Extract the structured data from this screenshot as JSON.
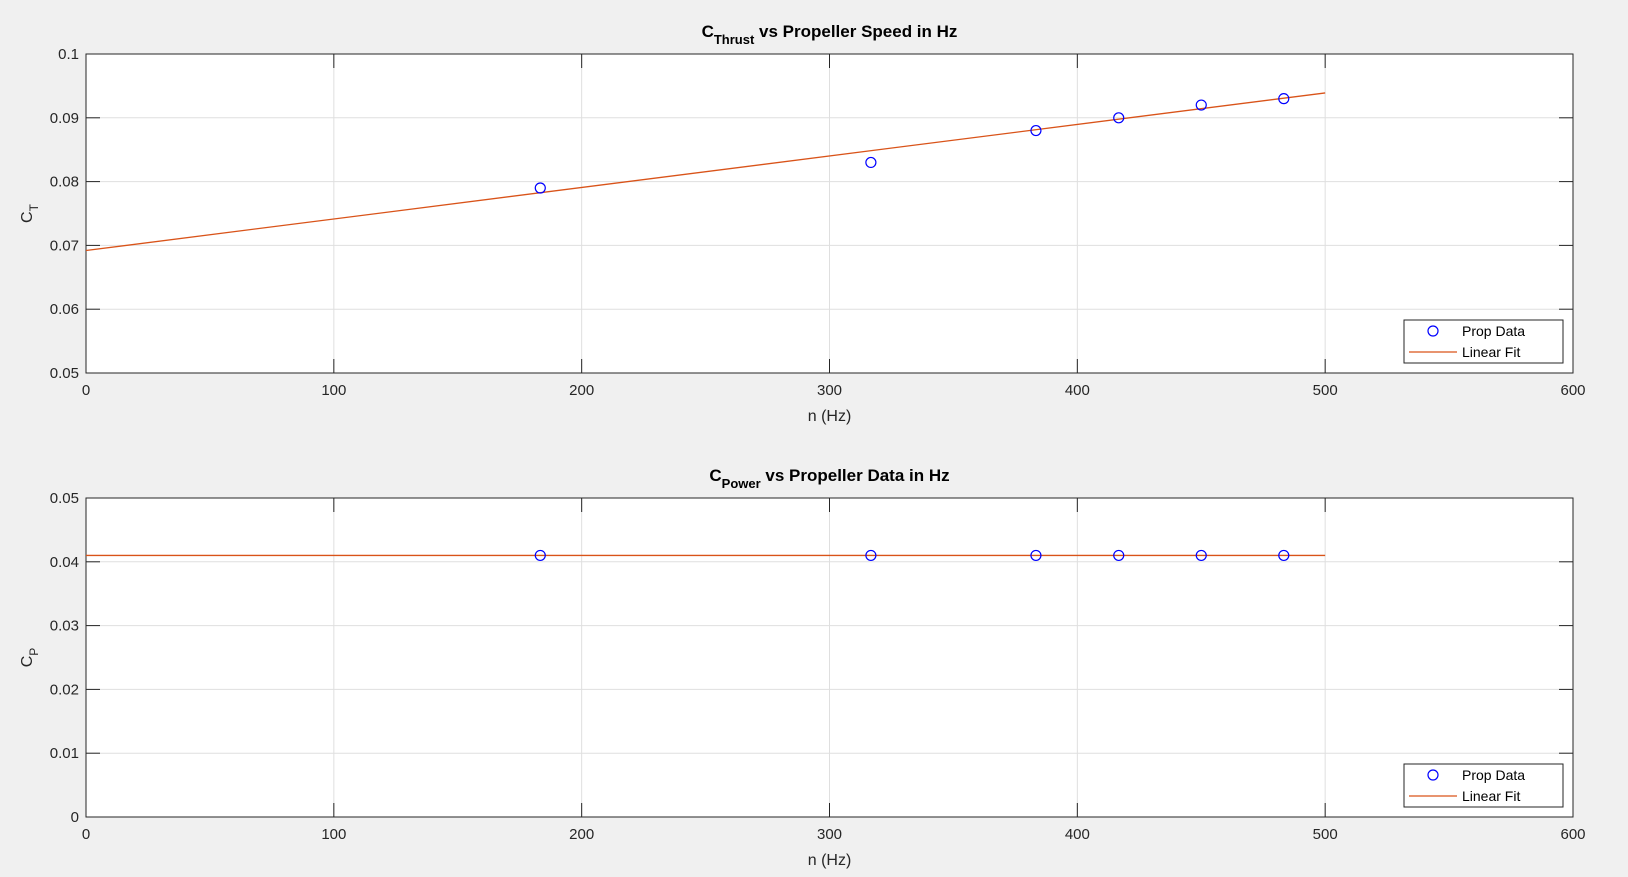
{
  "chart_data": [
    {
      "type": "scatter",
      "title": {
        "main": "C",
        "sub": "Thrust",
        "rest": " vs Propeller Speed in Hz"
      },
      "xlabel": "n (Hz)",
      "ylabel": {
        "main": "C",
        "sub": "T"
      },
      "xlim": [
        0,
        600
      ],
      "ylim": [
        0.05,
        0.1
      ],
      "xticks": [
        0,
        100,
        200,
        300,
        400,
        500,
        600
      ],
      "yticks": [
        0.05,
        0.06,
        0.07,
        0.08,
        0.09,
        0.1
      ],
      "xtick_labels": [
        "0",
        "100",
        "200",
        "300",
        "400",
        "500",
        "600"
      ],
      "ytick_labels": [
        "0.05",
        "0.06",
        "0.07",
        "0.08",
        "0.09",
        "0.1"
      ],
      "grid": true,
      "legend_position": "bottom-right",
      "series": [
        {
          "name": "Prop Data",
          "kind": "marker",
          "color": "#0000ff",
          "x": [
            183.3,
            316.7,
            383.3,
            416.7,
            450,
            483.3
          ],
          "y": [
            0.079,
            0.083,
            0.088,
            0.09,
            0.092,
            0.093
          ]
        },
        {
          "name": "Linear Fit",
          "kind": "line",
          "color": "#d95319",
          "x": [
            0,
            500
          ],
          "y": [
            0.0692,
            0.0939
          ]
        }
      ]
    },
    {
      "type": "scatter",
      "title": {
        "main": "C",
        "sub": "Power",
        "rest": " vs Propeller Data in Hz"
      },
      "xlabel": "n (Hz)",
      "ylabel": {
        "main": "C",
        "sub": "P"
      },
      "xlim": [
        0,
        600
      ],
      "ylim": [
        0,
        0.05
      ],
      "xticks": [
        0,
        100,
        200,
        300,
        400,
        500,
        600
      ],
      "yticks": [
        0,
        0.01,
        0.02,
        0.03,
        0.04,
        0.05
      ],
      "xtick_labels": [
        "0",
        "100",
        "200",
        "300",
        "400",
        "500",
        "600"
      ],
      "ytick_labels": [
        "0",
        "0.01",
        "0.02",
        "0.03",
        "0.04",
        "0.05"
      ],
      "grid": true,
      "legend_position": "bottom-right",
      "series": [
        {
          "name": "Prop Data",
          "kind": "marker",
          "color": "#0000ff",
          "x": [
            183.3,
            316.7,
            383.3,
            416.7,
            450,
            483.3
          ],
          "y": [
            0.041,
            0.041,
            0.041,
            0.041,
            0.041,
            0.041
          ]
        },
        {
          "name": "Linear Fit",
          "kind": "line",
          "color": "#d95319",
          "x": [
            0,
            500
          ],
          "y": [
            0.041,
            0.041
          ]
        }
      ]
    }
  ]
}
